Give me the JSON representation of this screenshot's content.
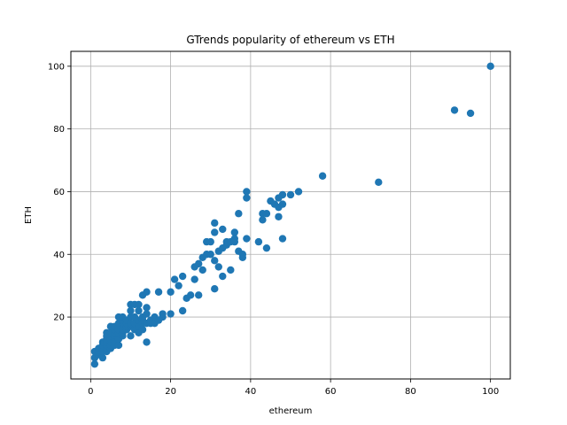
{
  "chart_data": {
    "type": "scatter",
    "title": "GTrends popularity of ethereum vs ETH",
    "xlabel": "ethereum",
    "ylabel": "ETH",
    "xlim": [
      -4.95,
      104.95
    ],
    "ylim": [
      0.25,
      104.75
    ],
    "xticks": [
      0,
      20,
      40,
      60,
      80,
      100
    ],
    "yticks": [
      20,
      40,
      60,
      80,
      100
    ],
    "grid": true,
    "marker_color": "#1f77b4",
    "series": [
      {
        "x": [
          1,
          1,
          1,
          2,
          2,
          2,
          3,
          3,
          3,
          3,
          3,
          4,
          4,
          4,
          4,
          4,
          4,
          4,
          5,
          5,
          5,
          5,
          5,
          5,
          5,
          6,
          6,
          6,
          6,
          6,
          6,
          6,
          7,
          7,
          7,
          7,
          7,
          7,
          7,
          8,
          8,
          8,
          8,
          8,
          8,
          9,
          9,
          9,
          9,
          10,
          10,
          10,
          10,
          10,
          10,
          11,
          11,
          11,
          11,
          12,
          12,
          12,
          12,
          12,
          13,
          13,
          13,
          13,
          13,
          14,
          14,
          14,
          14,
          14,
          15,
          15,
          16,
          16,
          17,
          17,
          18,
          18,
          20,
          20,
          21,
          22,
          23,
          23,
          24,
          25,
          26,
          26,
          27,
          27,
          28,
          28,
          29,
          29,
          30,
          30,
          31,
          31,
          31,
          31,
          32,
          32,
          33,
          33,
          33,
          34,
          34,
          35,
          35,
          36,
          36,
          36,
          37,
          37,
          38,
          38,
          39,
          39,
          39,
          42,
          43,
          43,
          44,
          44,
          45,
          46,
          47,
          47,
          47,
          48,
          48,
          48,
          50,
          52,
          58,
          72,
          91,
          95,
          100
        ],
        "y": [
          5,
          7,
          9,
          8,
          9,
          10,
          7,
          9,
          10,
          11,
          12,
          9,
          10,
          11,
          13,
          15,
          12,
          14,
          10,
          11,
          12,
          13,
          14,
          15,
          17,
          11,
          13,
          14,
          15,
          16,
          17,
          12,
          11,
          13,
          15,
          17,
          18,
          20,
          16,
          14,
          15,
          16,
          18,
          19,
          20,
          16,
          17,
          18,
          19,
          14,
          17,
          18,
          20,
          22,
          24,
          16,
          18,
          20,
          24,
          15,
          17,
          19,
          22,
          24,
          16,
          18,
          19,
          20,
          27,
          12,
          18,
          21,
          23,
          28,
          18,
          19,
          18,
          20,
          19,
          28,
          20,
          21,
          21,
          28,
          32,
          30,
          33,
          22,
          26,
          27,
          32,
          36,
          37,
          27,
          35,
          39,
          40,
          44,
          44,
          40,
          29,
          47,
          50,
          38,
          41,
          36,
          33,
          48,
          42,
          43,
          44,
          35,
          44,
          45,
          47,
          44,
          41,
          53,
          39,
          40,
          45,
          60,
          58,
          44,
          51,
          53,
          42,
          53,
          57,
          56,
          58,
          55,
          52,
          59,
          45,
          56,
          59,
          60,
          65,
          63,
          86,
          85,
          100
        ]
      }
    ]
  }
}
